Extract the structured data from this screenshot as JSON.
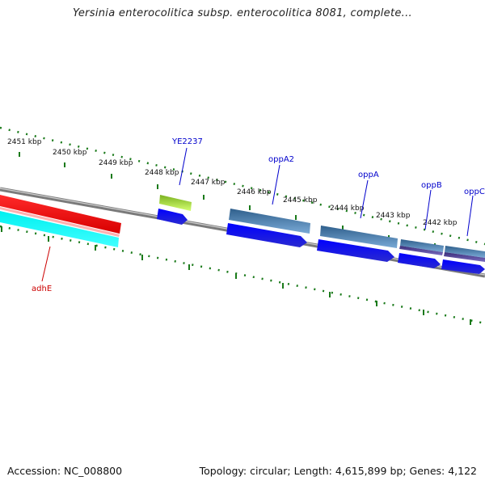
{
  "title": "Yersinia enterocolitica subsp. enterocolitica 8081, complete...",
  "footer": {
    "accession": "Accession: NC_008800",
    "summary": "Topology: circular; Length: 4,615,899 bp; Genes: 4,122"
  },
  "ruler": {
    "labels": [
      "2451 kbp",
      "2450 kbp",
      "2449 kbp",
      "2448 kbp",
      "2447 kbp",
      "2446 kbp",
      "2445 kbp",
      "2444 kbp",
      "2443 kbp",
      "2442 kbp"
    ]
  },
  "genes": [
    {
      "name": "adhE",
      "color": "#cc0000"
    },
    {
      "name": "YE2237",
      "color": "#0000cc"
    },
    {
      "name": "oppA2",
      "color": "#0000cc"
    },
    {
      "name": "oppA",
      "color": "#0000cc"
    },
    {
      "name": "oppB",
      "color": "#0000cc"
    },
    {
      "name": "oppC",
      "color": "#0000cc"
    }
  ],
  "colors": {
    "backbone": "#808080",
    "tick": "#1a7a1a",
    "red": "#ff0000",
    "cyan": "#00ffff",
    "lime": "#a8e040",
    "steel": "#4a7fb0",
    "blue": "#1010ee",
    "slate": "#4a3c90"
  }
}
